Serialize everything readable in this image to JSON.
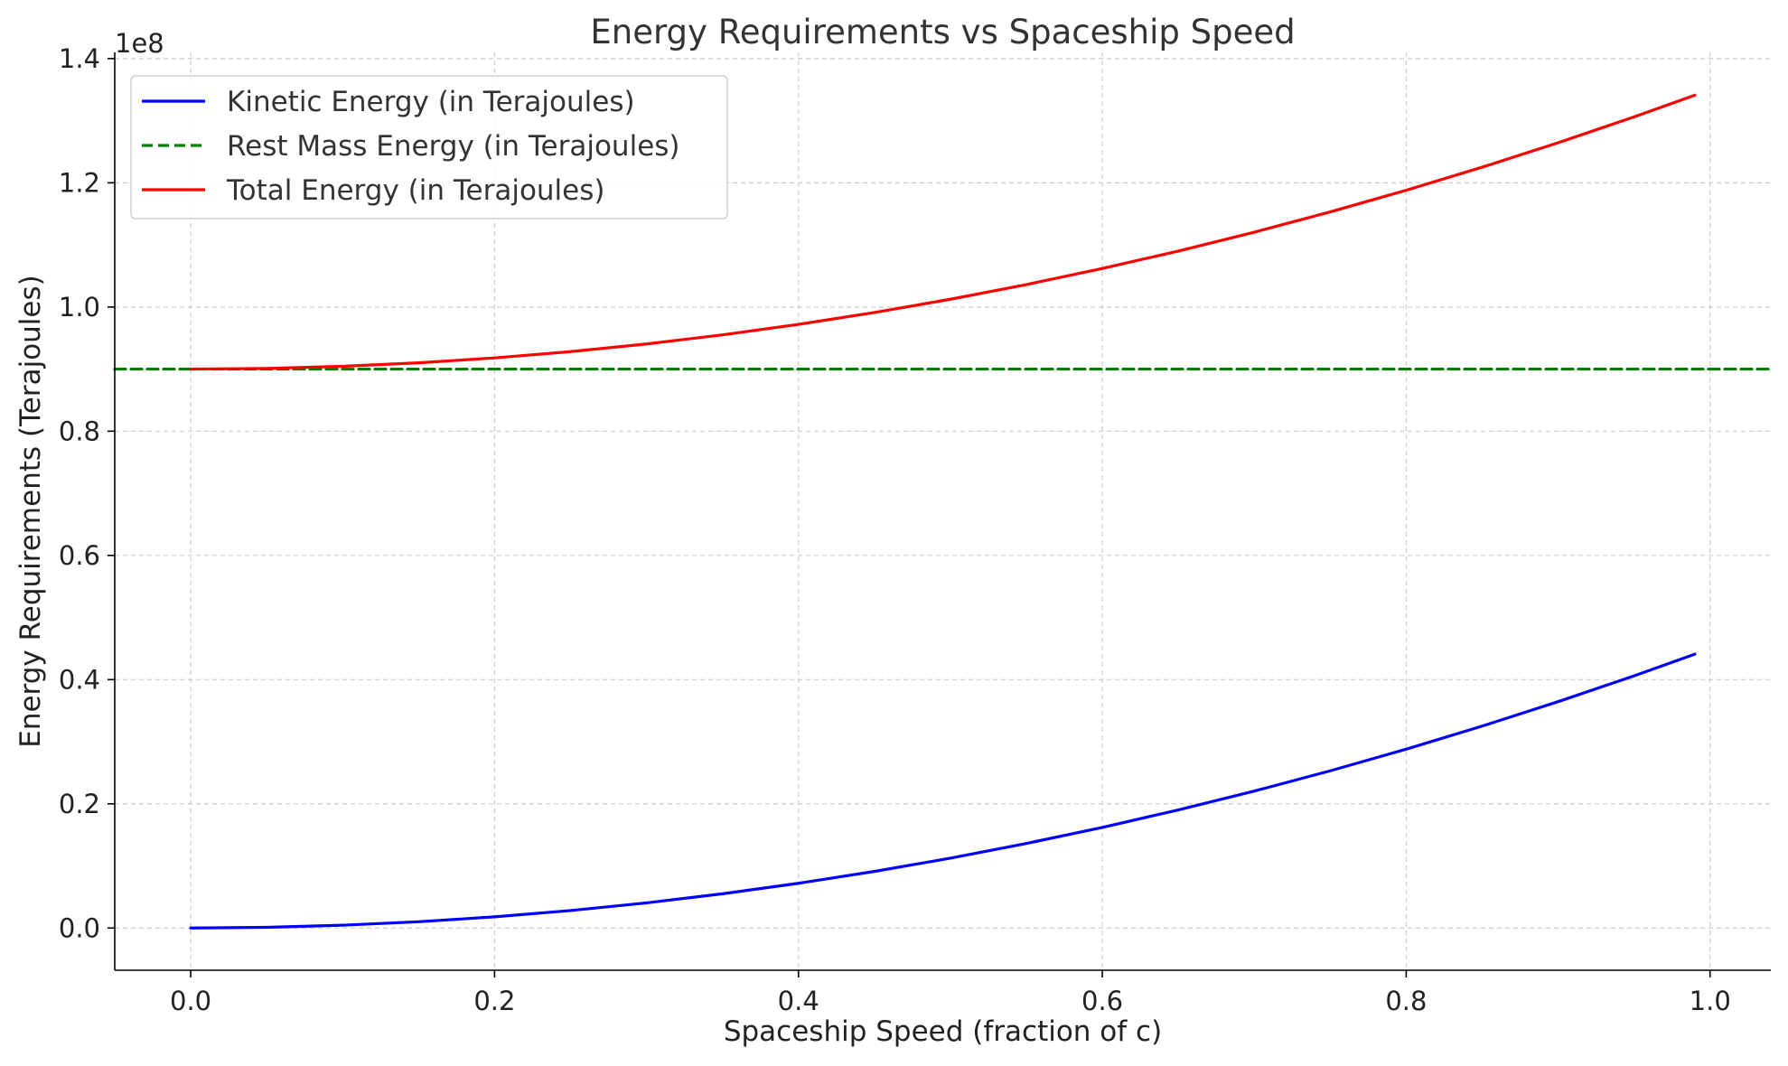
{
  "chart_data": {
    "type": "line",
    "title": "Energy Requirements vs Spaceship Speed",
    "xlabel": "Spaceship Speed (fraction of c)",
    "ylabel": "Energy Requirements (Terajoules)",
    "y_offset_label": "1e8",
    "xlim": [
      -0.05,
      1.04
    ],
    "ylim": [
      -6800000,
      141000000
    ],
    "xticks": [
      0.0,
      0.2,
      0.4,
      0.6,
      0.8,
      1.0
    ],
    "xtick_labels": [
      "0.0",
      "0.2",
      "0.4",
      "0.6",
      "0.8",
      "1.0"
    ],
    "yticks": [
      0,
      20000000,
      40000000,
      60000000,
      80000000,
      100000000,
      120000000,
      140000000
    ],
    "ytick_labels": [
      "0.0",
      "0.2",
      "0.4",
      "0.6",
      "0.8",
      "1.0",
      "1.2",
      "1.4"
    ],
    "grid": true,
    "legend_position": "top-left",
    "x": [
      0.0,
      0.05,
      0.1,
      0.15,
      0.2,
      0.25,
      0.3,
      0.35,
      0.4,
      0.45,
      0.5,
      0.55,
      0.6,
      0.65,
      0.7,
      0.75,
      0.8,
      0.85,
      0.9,
      0.95,
      0.99
    ],
    "series": [
      {
        "name": "Kinetic Energy (in Terajoules)",
        "color": "#0000ff",
        "style": "solid",
        "values": [
          0,
          112000,
          450000,
          1012000,
          1800000,
          2812000,
          4050000,
          5512000,
          7200000,
          9112000,
          11250000,
          13612000,
          16200000,
          19012000,
          22050000,
          25312000,
          28800000,
          32512000,
          36450000,
          40612000,
          44104500
        ]
      },
      {
        "name": "Rest Mass Energy (in Terajoules)",
        "color": "#008000",
        "style": "dashed",
        "constant": 90000000
      },
      {
        "name": "Total Energy (in Terajoules)",
        "color": "#ff0000",
        "style": "solid",
        "values": [
          90000000,
          90112000,
          90450000,
          91012000,
          91800000,
          92812000,
          94050000,
          95512000,
          97200000,
          99112000,
          101250000,
          103612000,
          106200000,
          109012000,
          112050000,
          115312000,
          118800000,
          122512000,
          126450000,
          130612000,
          134104500
        ]
      }
    ]
  }
}
